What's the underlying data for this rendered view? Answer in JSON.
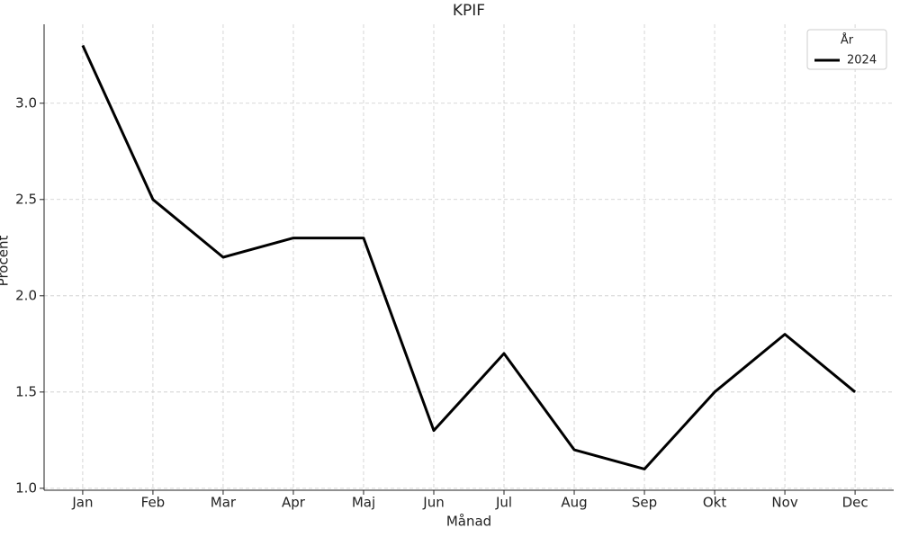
{
  "chart_data": {
    "type": "line",
    "title": "KPIF",
    "x_label": "Månad",
    "y_label": "Procent",
    "categories": [
      "Jan",
      "Feb",
      "Mar",
      "Apr",
      "Maj",
      "Jun",
      "Jul",
      "Aug",
      "Sep",
      "Okt",
      "Nov",
      "Dec"
    ],
    "series": [
      {
        "name": "2024",
        "color": "#000000",
        "values": [
          3.3,
          2.5,
          2.2,
          2.3,
          2.3,
          1.3,
          1.7,
          1.2,
          1.1,
          1.5,
          1.8,
          1.5
        ]
      }
    ],
    "ylim": [
      0.99,
      3.41
    ],
    "yticks": [
      {
        "value": 1.0,
        "label": "1.0"
      },
      1.5,
      {
        "value": 2.0,
        "label": "2.0"
      },
      2.5,
      {
        "value": 3.0,
        "label": "3.0"
      }
    ],
    "grid": true,
    "legend_title": "År",
    "legend_position": "upper right"
  }
}
